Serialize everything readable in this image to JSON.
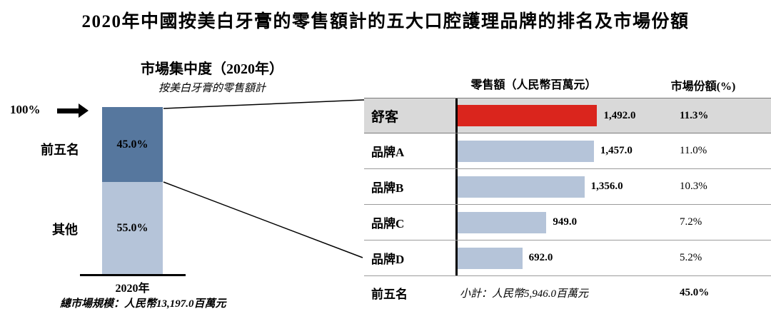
{
  "page_title": "2020年中國按美白牙膏的零售額計的五大口腔護理品牌的排名及市場份額",
  "colors": {
    "dark_blue": "#56779e",
    "light_blue": "#b5c4d9",
    "red": "#da251d",
    "highlight_row_bg": "#d9d9d9"
  },
  "left_chart": {
    "title": "市場集中度（2020年）",
    "subtitle": "按美白牙膏的零售額計",
    "top_axis_label": "100%",
    "segments": [
      {
        "label": "前五名",
        "pct": 45.0,
        "pct_label": "45.0%"
      },
      {
        "label": "其他",
        "pct": 55.0,
        "pct_label": "55.0%"
      }
    ],
    "x_label": "2020年",
    "footnote": "總市場規模：人民幣13,197.0百萬元"
  },
  "right_chart": {
    "value_header": "零售額（人民幣百萬元）",
    "share_header": "市場份額(%)",
    "rows": [
      {
        "label": "舒客",
        "value": 1492.0,
        "value_label": "1,492.0",
        "share": "11.3%"
      },
      {
        "label": "品牌A",
        "value": 1457.0,
        "value_label": "1,457.0",
        "share": "11.0%"
      },
      {
        "label": "品牌B",
        "value": 1356.0,
        "value_label": "1,356.0",
        "share": "10.3%"
      },
      {
        "label": "品牌C",
        "value": 949.0,
        "value_label": "949.0",
        "share": "7.2%"
      },
      {
        "label": "品牌D",
        "value": 692.0,
        "value_label": "692.0",
        "share": "5.2%"
      }
    ],
    "subtotal": {
      "label": "前五名",
      "text": "小計：人民幣5,946.0百萬元",
      "share": "45.0%"
    }
  },
  "chart_data": [
    {
      "type": "bar",
      "variant": "stacked-column",
      "title": "市場集中度（2020年）",
      "subtitle": "按美白牙膏的零售額計",
      "categories": [
        "2020年"
      ],
      "series": [
        {
          "name": "前五名",
          "values": [
            45.0
          ]
        },
        {
          "name": "其他",
          "values": [
            55.0
          ]
        }
      ],
      "unit": "percent",
      "ylim": [
        0,
        100
      ],
      "annotation": "總市場規模：人民幣13,197.0百萬元"
    },
    {
      "type": "bar",
      "variant": "horizontal",
      "title": "2020年中國按美白牙膏的零售額計的五大口腔護理品牌的排名及市場份額",
      "categories": [
        "舒客",
        "品牌A",
        "品牌B",
        "品牌C",
        "品牌D"
      ],
      "series": [
        {
          "name": "零售額（人民幣百萬元）",
          "values": [
            1492.0,
            1457.0,
            1356.0,
            949.0,
            692.0
          ]
        },
        {
          "name": "市場份額(%)",
          "values": [
            11.3,
            11.0,
            10.3,
            7.2,
            5.2
          ]
        }
      ],
      "highlight_category": "舒客",
      "subtotal": {
        "label": "前五名",
        "value": 5946.0,
        "share_pct": 45.0
      },
      "xlim": [
        0,
        1600
      ],
      "legend": "none",
      "grid": false
    }
  ]
}
